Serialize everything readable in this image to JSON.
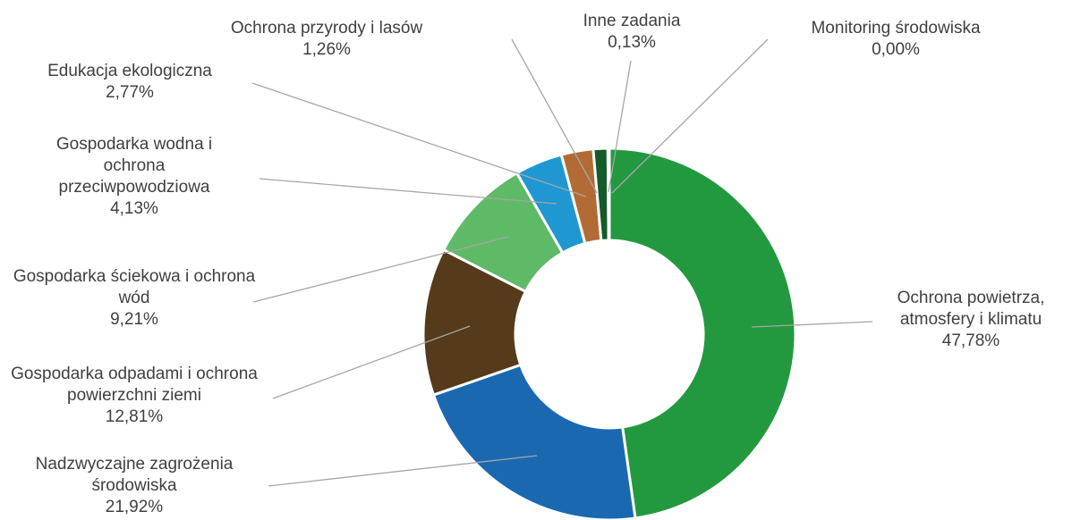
{
  "chart_data": {
    "type": "pie",
    "categories": [
      "Ochrona powietrza, atmosfery i klimatu",
      "Nadzwyczajne zagrożenia środowiska",
      "Gospodarka odpadami i ochrona powierzchni ziemi",
      "Gospodarka ściekowa i ochrona wód",
      "Gospodarka wodna i ochrona przeciwpowodziowa",
      "Edukacja ekologiczna",
      "Ochrona przyrody i lasów",
      "Inne zadania",
      "Monitoring środowiska"
    ],
    "values": [
      47.78,
      21.92,
      12.81,
      9.21,
      4.13,
      2.77,
      1.26,
      0.13,
      0.0
    ],
    "value_labels": [
      "47,78%",
      "21,92%",
      "12,81%",
      "9,21%",
      "4,13%",
      "2,77%",
      "1,26%",
      "0,13%",
      "0,00%"
    ],
    "colors": [
      "#23993f",
      "#1a69b0",
      "#553a1b",
      "#5fba68",
      "#1f97d2",
      "#b26b35",
      "#145a2a",
      "#1f4e79",
      "#7f7f7f"
    ]
  }
}
